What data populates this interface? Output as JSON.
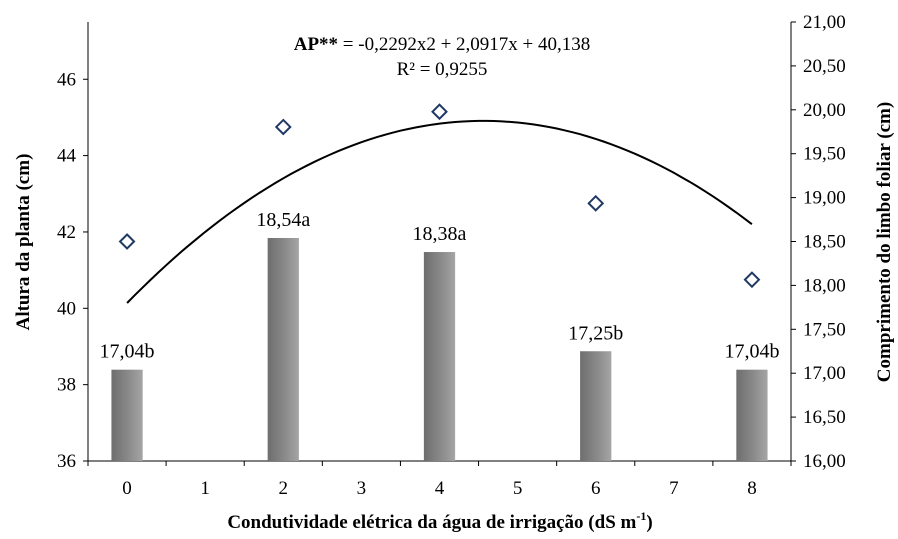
{
  "chart_data": {
    "type": "bar",
    "combo": [
      "bar",
      "scatter",
      "line"
    ],
    "x_ticks": [
      "0",
      "1",
      "2",
      "3",
      "4",
      "5",
      "6",
      "7",
      "8"
    ],
    "xlabel": {
      "text": "Condutividade elétrica da água de irrigação (dS m",
      "sup": "-1",
      "suffix": ")"
    },
    "ylabel_left": "Altura da planta (cm)",
    "ylabel_right": "Comprimento do limbo foliar (cm)",
    "xlim": [
      -0.5,
      8.5
    ],
    "ylim_left": [
      36,
      47.5
    ],
    "ylim_right": [
      16,
      21
    ],
    "yticks_left": [
      "36",
      "38",
      "40",
      "42",
      "44",
      "46"
    ],
    "yticks_right": [
      "16,00",
      "16,50",
      "17,00",
      "17,50",
      "18,00",
      "18,50",
      "19,00",
      "19,50",
      "20,00",
      "20,50",
      "21,00"
    ],
    "bars": {
      "axis": "right",
      "x": [
        0,
        2,
        4,
        6,
        8
      ],
      "values": [
        17.04,
        18.54,
        18.38,
        17.25,
        17.04
      ],
      "labels": [
        "17,04b",
        "18,54a",
        "18,38a",
        "17,25b",
        "17,04b"
      ],
      "color": "#7f7f7f"
    },
    "points": {
      "axis": "left",
      "x": [
        0,
        2,
        4,
        6,
        8
      ],
      "y": [
        41.75,
        44.75,
        45.15,
        42.75,
        40.75
      ],
      "marker": "diamond-open",
      "color": "#1f3864"
    },
    "trendline": {
      "axis": "left",
      "coefficients": [
        -0.2292,
        2.0917,
        40.138
      ],
      "x_range": [
        0,
        8
      ],
      "color": "#000000"
    },
    "equation": {
      "bold_part": "AP**",
      "rest": " = -0,2292x2 + 2,0917x + 40,138",
      "r2": "R² = 0,9255"
    }
  }
}
